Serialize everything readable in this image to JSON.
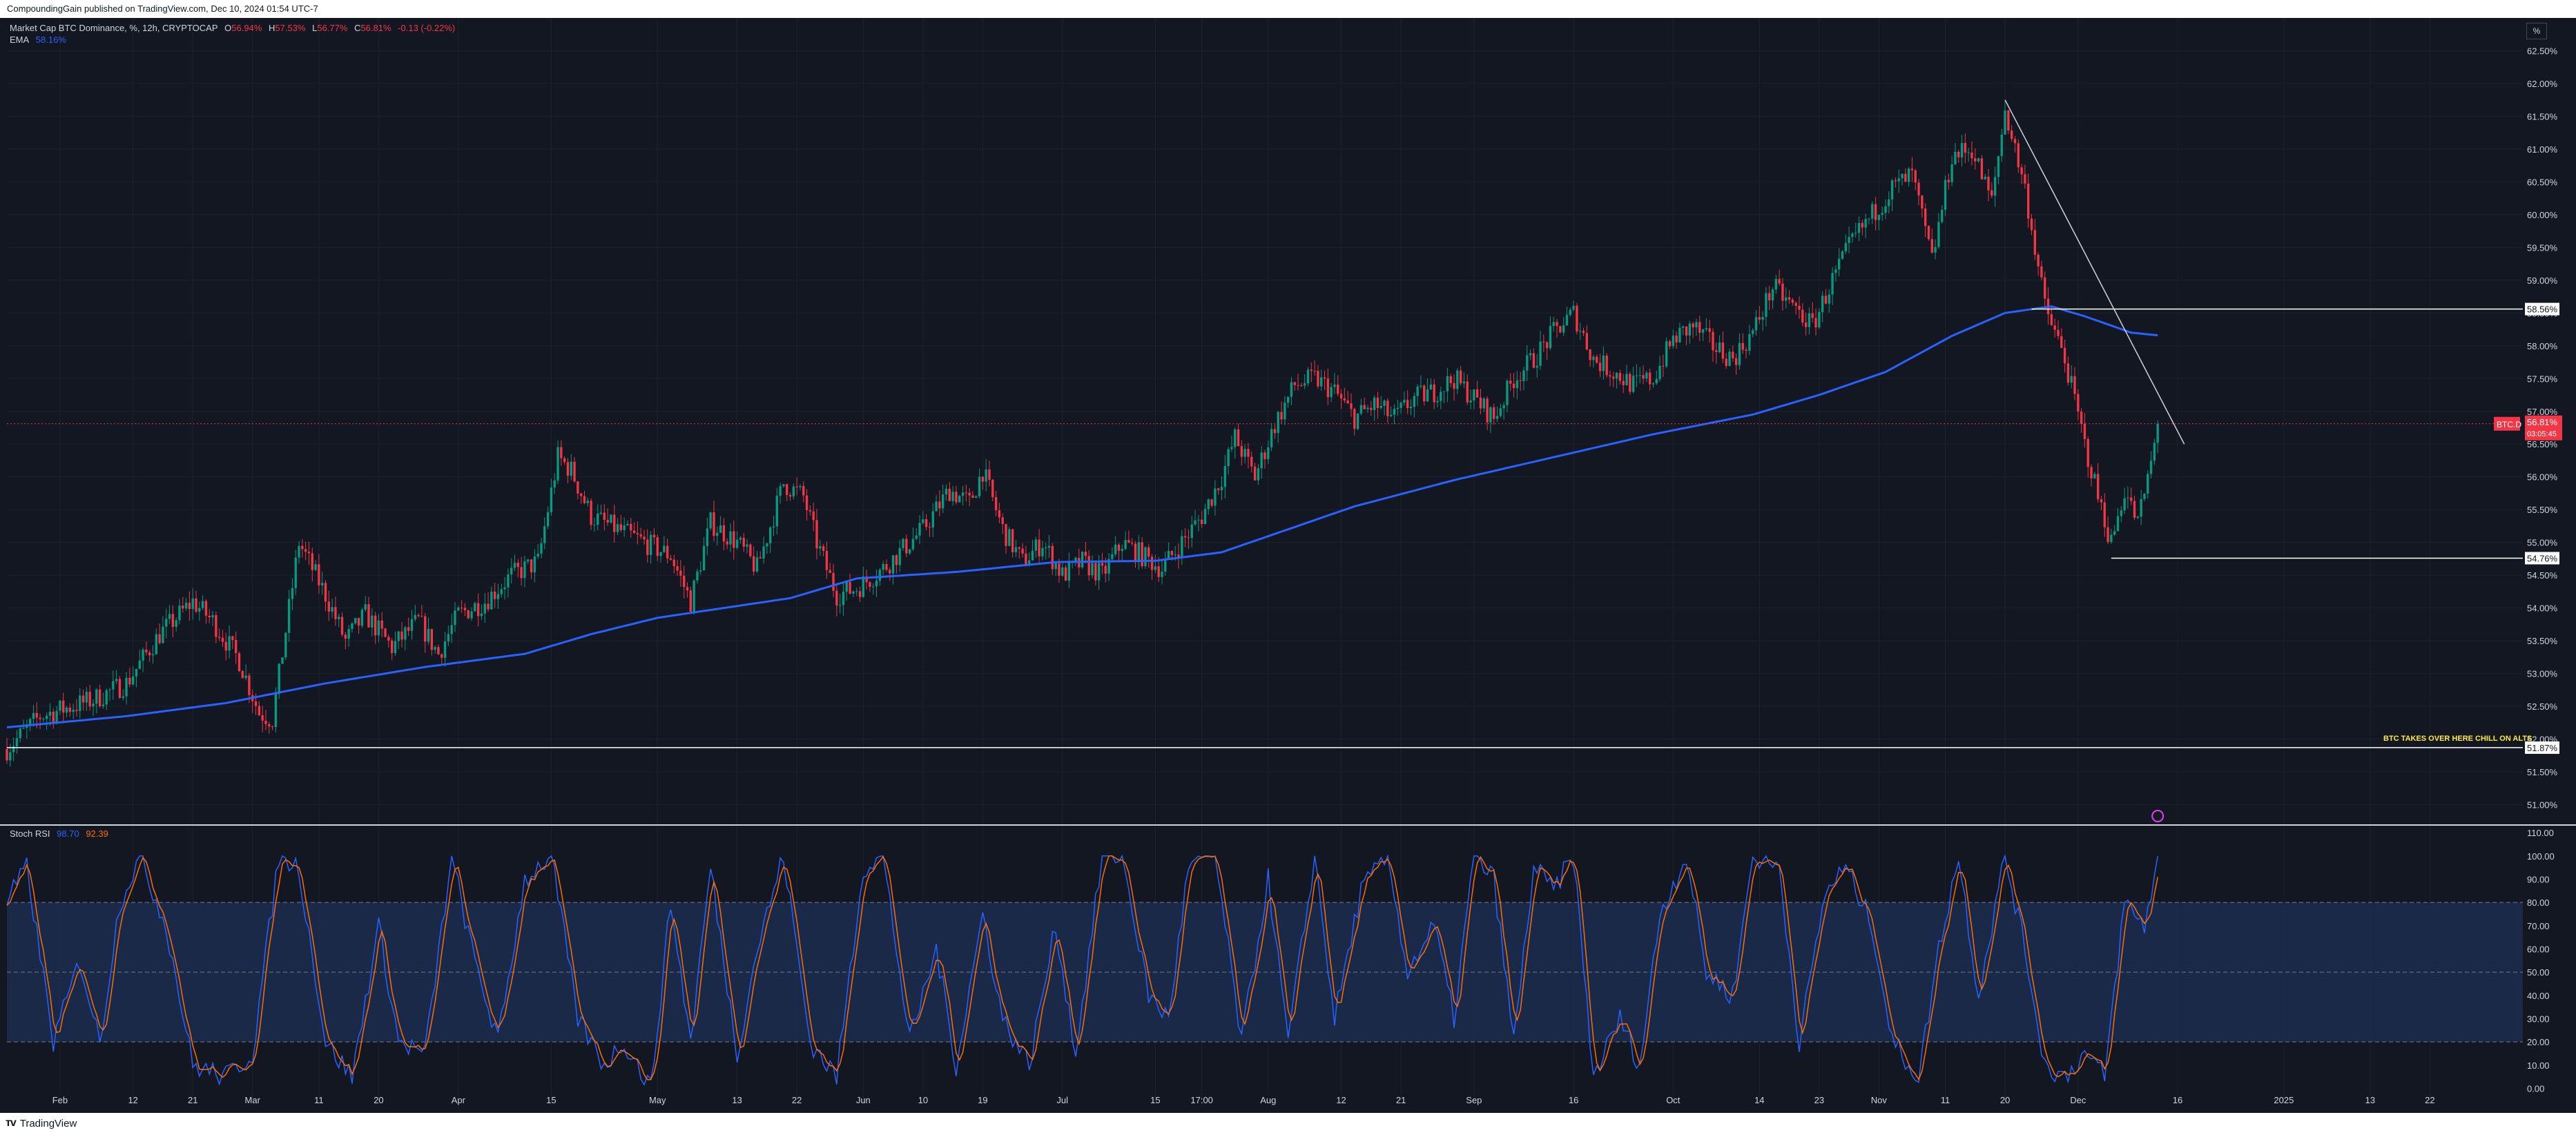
{
  "header": {
    "publisher_text": "CompoundingGain published on TradingView.com, Dec 10, 2024 01:54 UTC-7"
  },
  "legend": {
    "symbol": "Market Cap BTC Dominance, %, 12h, CRYPTOCAP",
    "o_label": "O",
    "o_value": "56.94%",
    "h_label": "H",
    "h_value": "57.53%",
    "l_label": "L",
    "l_value": "56.77%",
    "c_label": "C",
    "c_value": "56.81%",
    "change": "-0.13 (-0.22%)",
    "ema_label": "EMA",
    "ema_value": "58.16%"
  },
  "scale_button": "%",
  "colors": {
    "background": "#131722",
    "grid": "#1e222d",
    "up": "#089981",
    "down": "#f23645",
    "ema": "#2962ff",
    "text": "#d1d4dc",
    "annotation": "#ffeb3b",
    "k_line": "#2962ff",
    "d_line": "#ff6d00",
    "rsi_band": "#1b2b4b"
  },
  "chart_data": [
    {
      "type": "candlestick",
      "title": "Market Cap BTC Dominance, %, 12h, CRYPTOCAP",
      "ylim": [
        50.7,
        63.0
      ],
      "y_ticks": [
        "51.00%",
        "51.50%",
        "52.00%",
        "52.50%",
        "53.00%",
        "53.50%",
        "54.00%",
        "54.50%",
        "55.00%",
        "55.50%",
        "56.00%",
        "56.50%",
        "57.00%",
        "57.50%",
        "58.00%",
        "58.50%",
        "59.00%",
        "59.50%",
        "60.00%",
        "60.50%",
        "61.00%",
        "61.50%",
        "62.00%",
        "62.50%"
      ],
      "x_ticks": [
        "Feb",
        "12",
        "21",
        "Mar",
        "11",
        "20",
        "Apr",
        "15",
        "May",
        "13",
        "22",
        "Jun",
        "10",
        "19",
        "Jul",
        "15",
        "17:00",
        "Aug",
        "12",
        "21",
        "Sep",
        "16",
        "Oct",
        "14",
        "23",
        "Nov",
        "11",
        "20",
        "Dec",
        "16",
        "2025",
        "13",
        "22"
      ],
      "x_tick_days": [
        0,
        11,
        20,
        29,
        39,
        48,
        60,
        74,
        90,
        102,
        111,
        121,
        130,
        139,
        151,
        165,
        172,
        182,
        193,
        202,
        213,
        228,
        243,
        256,
        265,
        274,
        284,
        293,
        304,
        319,
        335,
        348,
        357
      ],
      "x_range_days": [
        -8,
        371
      ],
      "close_series": [
        [
          -8,
          51.85
        ],
        [
          -3,
          52.35
        ],
        [
          5,
          52.6
        ],
        [
          10,
          52.85
        ],
        [
          15,
          53.6
        ],
        [
          20,
          54.1
        ],
        [
          23,
          53.8
        ],
        [
          27,
          53.2
        ],
        [
          30,
          52.4
        ],
        [
          32,
          52.3
        ],
        [
          36,
          55.0
        ],
        [
          40,
          54.2
        ],
        [
          43,
          53.5
        ],
        [
          46,
          53.9
        ],
        [
          50,
          53.4
        ],
        [
          54,
          53.8
        ],
        [
          57,
          53.3
        ],
        [
          60,
          53.9
        ],
        [
          64,
          54.1
        ],
        [
          68,
          54.5
        ],
        [
          72,
          54.7
        ],
        [
          75,
          56.3
        ],
        [
          77,
          56.1
        ],
        [
          80,
          55.4
        ],
        [
          84,
          55.2
        ],
        [
          88,
          55.0
        ],
        [
          92,
          54.8
        ],
        [
          95,
          54.1
        ],
        [
          98,
          55.3
        ],
        [
          102,
          55.0
        ],
        [
          105,
          54.6
        ],
        [
          109,
          55.9
        ],
        [
          112,
          55.7
        ],
        [
          114,
          55.0
        ],
        [
          117,
          54.2
        ],
        [
          120,
          54.3
        ],
        [
          124,
          54.6
        ],
        [
          127,
          54.9
        ],
        [
          130,
          55.2
        ],
        [
          134,
          55.8
        ],
        [
          137,
          55.6
        ],
        [
          139,
          56.1
        ],
        [
          142,
          55.2
        ],
        [
          145,
          54.7
        ],
        [
          148,
          55.0
        ],
        [
          151,
          54.5
        ],
        [
          154,
          54.7
        ],
        [
          157,
          54.5
        ],
        [
          160,
          55.0
        ],
        [
          163,
          54.8
        ],
        [
          166,
          54.6
        ],
        [
          169,
          55.0
        ],
        [
          172,
          55.4
        ],
        [
          175,
          56.0
        ],
        [
          177,
          56.6
        ],
        [
          180,
          56.0
        ],
        [
          183,
          56.8
        ],
        [
          186,
          57.4
        ],
        [
          189,
          57.5
        ],
        [
          192,
          57.3
        ],
        [
          195,
          56.9
        ],
        [
          198,
          57.1
        ],
        [
          201,
          56.9
        ],
        [
          204,
          57.2
        ],
        [
          207,
          57.3
        ],
        [
          210,
          57.5
        ],
        [
          213,
          57.2
        ],
        [
          216,
          56.9
        ],
        [
          219,
          57.5
        ],
        [
          222,
          57.8
        ],
        [
          225,
          58.2
        ],
        [
          228,
          58.5
        ],
        [
          231,
          57.8
        ],
        [
          234,
          57.6
        ],
        [
          237,
          57.4
        ],
        [
          240,
          57.5
        ],
        [
          243,
          58.1
        ],
        [
          246,
          58.3
        ],
        [
          249,
          58.0
        ],
        [
          252,
          57.8
        ],
        [
          255,
          58.2
        ],
        [
          258,
          58.9
        ],
        [
          261,
          58.6
        ],
        [
          264,
          58.3
        ],
        [
          267,
          59.0
        ],
        [
          270,
          59.6
        ],
        [
          273,
          60.0
        ],
        [
          276,
          60.4
        ],
        [
          279,
          60.6
        ],
        [
          282,
          59.3
        ],
        [
          285,
          60.9
        ],
        [
          288,
          61.0
        ],
        [
          291,
          60.2
        ],
        [
          293,
          61.6
        ],
        [
          296,
          60.4
        ],
        [
          299,
          58.6
        ],
        [
          302,
          57.8
        ],
        [
          305,
          56.5
        ],
        [
          307,
          55.7
        ],
        [
          309,
          55.0
        ],
        [
          311,
          55.8
        ],
        [
          313,
          55.3
        ],
        [
          315,
          56.2
        ],
        [
          316,
          56.8
        ]
      ],
      "ema_series": [
        [
          -8,
          52.18
        ],
        [
          10,
          52.35
        ],
        [
          25,
          52.55
        ],
        [
          40,
          52.85
        ],
        [
          55,
          53.1
        ],
        [
          70,
          53.3
        ],
        [
          80,
          53.6
        ],
        [
          90,
          53.85
        ],
        [
          100,
          54.0
        ],
        [
          110,
          54.15
        ],
        [
          120,
          54.45
        ],
        [
          135,
          54.55
        ],
        [
          150,
          54.7
        ],
        [
          165,
          54.72
        ],
        [
          175,
          54.85
        ],
        [
          185,
          55.2
        ],
        [
          195,
          55.55
        ],
        [
          210,
          55.95
        ],
        [
          225,
          56.3
        ],
        [
          240,
          56.65
        ],
        [
          255,
          56.95
        ],
        [
          265,
          57.25
        ],
        [
          275,
          57.6
        ],
        [
          285,
          58.15
        ],
        [
          293,
          58.5
        ],
        [
          300,
          58.6
        ],
        [
          305,
          58.45
        ],
        [
          312,
          58.2
        ],
        [
          316,
          58.16
        ]
      ],
      "last_price": 56.81,
      "price_label": "BTC.D",
      "price_value": "56.81%",
      "price_countdown": "03:05:45",
      "horizontal_levels": [
        {
          "value": 58.56,
          "label": "58.56%"
        },
        {
          "value": 54.76,
          "label": "54.76%"
        },
        {
          "value": 51.87,
          "label": "51.87%"
        }
      ],
      "trendline": {
        "start": [
          293,
          61.75
        ],
        "end": [
          320,
          56.5
        ]
      },
      "annotation": "BTC TAKES OVER HERE CHILL ON ALTS"
    },
    {
      "type": "line",
      "title": "Stoch RSI",
      "series": [
        {
          "name": "K",
          "last": "98.70"
        },
        {
          "name": "D",
          "last": "92.39"
        }
      ],
      "ylim": [
        -7,
        113
      ],
      "y_ticks": [
        "0.00",
        "10.00",
        "20.00",
        "30.00",
        "40.00",
        "50.00",
        "60.00",
        "70.00",
        "80.00",
        "90.00",
        "100.00",
        "110.00"
      ],
      "bands": [
        20,
        50,
        80
      ],
      "cycle_anchors": [
        [
          -8,
          80
        ],
        [
          -5,
          95
        ],
        [
          -1,
          20
        ],
        [
          3,
          55
        ],
        [
          6,
          20
        ],
        [
          9,
          80
        ],
        [
          12,
          100
        ],
        [
          16,
          70
        ],
        [
          20,
          10
        ],
        [
          25,
          5
        ],
        [
          29,
          15
        ],
        [
          33,
          100
        ],
        [
          36,
          95
        ],
        [
          40,
          20
        ],
        [
          44,
          5
        ],
        [
          48,
          70
        ],
        [
          51,
          20
        ],
        [
          55,
          15
        ],
        [
          59,
          100
        ],
        [
          62,
          60
        ],
        [
          66,
          20
        ],
        [
          70,
          90
        ],
        [
          74,
          100
        ],
        [
          78,
          30
        ],
        [
          82,
          10
        ],
        [
          85,
          20
        ],
        [
          89,
          0
        ],
        [
          92,
          80
        ],
        [
          95,
          20
        ],
        [
          98,
          95
        ],
        [
          102,
          15
        ],
        [
          105,
          60
        ],
        [
          109,
          100
        ],
        [
          113,
          20
        ],
        [
          117,
          5
        ],
        [
          121,
          95
        ],
        [
          124,
          100
        ],
        [
          128,
          20
        ],
        [
          132,
          60
        ],
        [
          135,
          10
        ],
        [
          139,
          75
        ],
        [
          142,
          30
        ],
        [
          146,
          10
        ],
        [
          150,
          70
        ],
        [
          153,
          15
        ],
        [
          157,
          100
        ],
        [
          160,
          100
        ],
        [
          164,
          40
        ],
        [
          167,
          30
        ],
        [
          170,
          95
        ],
        [
          174,
          100
        ],
        [
          178,
          20
        ],
        [
          182,
          90
        ],
        [
          185,
          20
        ],
        [
          189,
          100
        ],
        [
          192,
          30
        ],
        [
          196,
          85
        ],
        [
          200,
          100
        ],
        [
          203,
          50
        ],
        [
          207,
          70
        ],
        [
          210,
          30
        ],
        [
          213,
          100
        ],
        [
          216,
          90
        ],
        [
          219,
          20
        ],
        [
          222,
          95
        ],
        [
          225,
          85
        ],
        [
          228,
          100
        ],
        [
          231,
          5
        ],
        [
          235,
          30
        ],
        [
          238,
          10
        ],
        [
          241,
          75
        ],
        [
          245,
          100
        ],
        [
          248,
          50
        ],
        [
          252,
          40
        ],
        [
          255,
          100
        ],
        [
          259,
          95
        ],
        [
          262,
          20
        ],
        [
          266,
          85
        ],
        [
          269,
          95
        ],
        [
          273,
          70
        ],
        [
          276,
          20
        ],
        [
          280,
          5
        ],
        [
          283,
          60
        ],
        [
          286,
          100
        ],
        [
          289,
          40
        ],
        [
          293,
          100
        ],
        [
          296,
          60
        ],
        [
          299,
          10
        ],
        [
          302,
          5
        ],
        [
          305,
          15
        ],
        [
          308,
          5
        ],
        [
          311,
          80
        ],
        [
          314,
          70
        ],
        [
          316,
          98
        ]
      ]
    }
  ],
  "footer": {
    "brand": "TradingView"
  }
}
